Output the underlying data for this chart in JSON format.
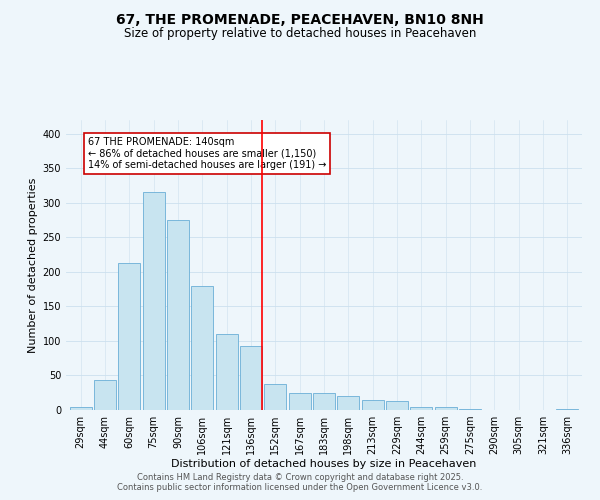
{
  "title": "67, THE PROMENADE, PEACEHAVEN, BN10 8NH",
  "subtitle": "Size of property relative to detached houses in Peacehaven",
  "xlabel": "Distribution of detached houses by size in Peacehaven",
  "ylabel": "Number of detached properties",
  "bar_labels": [
    "29sqm",
    "44sqm",
    "60sqm",
    "75sqm",
    "90sqm",
    "106sqm",
    "121sqm",
    "136sqm",
    "152sqm",
    "167sqm",
    "183sqm",
    "198sqm",
    "213sqm",
    "229sqm",
    "244sqm",
    "259sqm",
    "275sqm",
    "290sqm",
    "305sqm",
    "321sqm",
    "336sqm"
  ],
  "bar_heights": [
    5,
    44,
    213,
    315,
    275,
    180,
    110,
    93,
    38,
    24,
    24,
    20,
    15,
    13,
    5,
    5,
    2,
    0,
    0,
    0,
    2
  ],
  "bar_color": "#c8e4f0",
  "bar_edge_color": "#6aafd6",
  "vline_x_index": 7,
  "vline_color": "red",
  "annotation_text": "67 THE PROMENADE: 140sqm\n← 86% of detached houses are smaller (1,150)\n14% of semi-detached houses are larger (191) →",
  "annotation_box_color": "white",
  "annotation_box_edge_color": "#cc0000",
  "ylim": [
    0,
    420
  ],
  "yticks": [
    0,
    50,
    100,
    150,
    200,
    250,
    300,
    350,
    400
  ],
  "title_fontsize": 10,
  "subtitle_fontsize": 8.5,
  "xlabel_fontsize": 8,
  "ylabel_fontsize": 8,
  "tick_fontsize": 7,
  "annotation_fontsize": 7,
  "footer_line1": "Contains HM Land Registry data © Crown copyright and database right 2025.",
  "footer_line2": "Contains public sector information licensed under the Open Government Licence v3.0.",
  "footer_fontsize": 6,
  "grid_color": "#cce0ee",
  "background_color": "#eef6fb"
}
